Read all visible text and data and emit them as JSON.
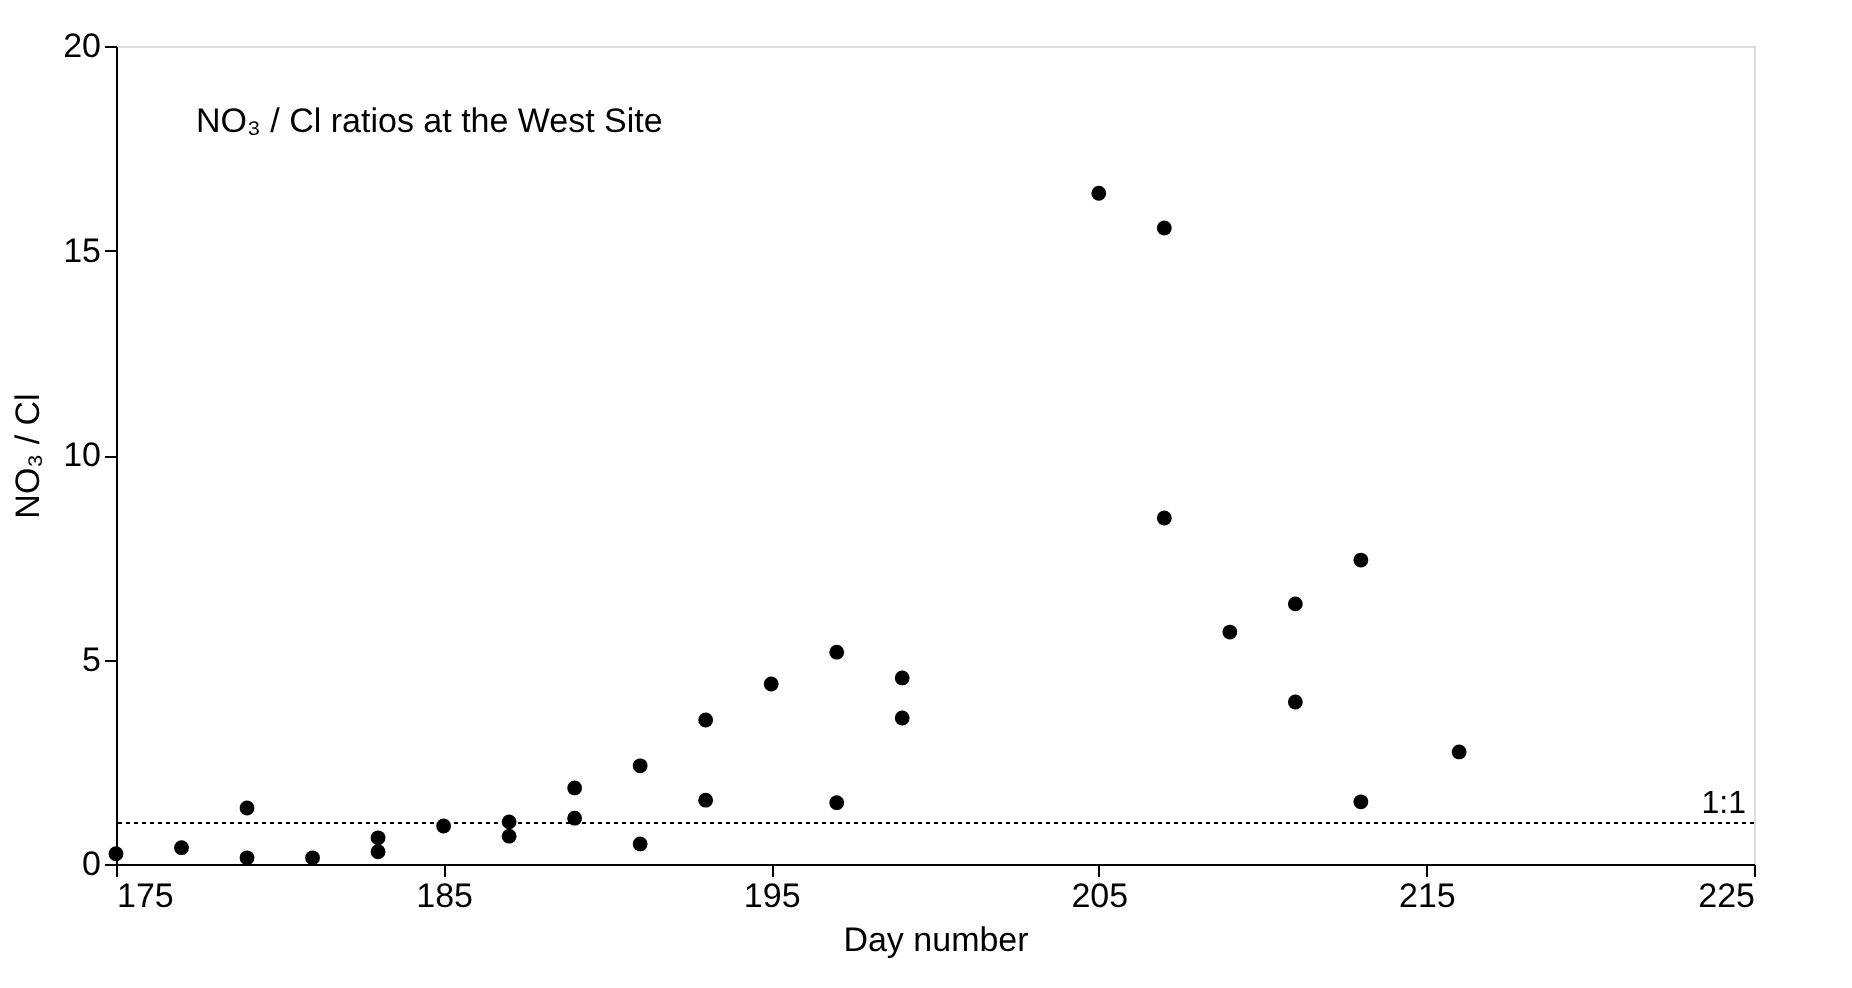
{
  "chart_data": {
    "type": "scatter",
    "title": "NO₃ / Cl ratios at the West Site",
    "xlabel": "Day number",
    "ylabel": "NO₃ / Cl",
    "x": [
      175,
      177,
      179,
      179,
      181,
      183,
      183,
      185,
      187,
      187,
      189,
      189,
      191,
      191,
      193,
      193,
      195,
      197,
      197,
      199,
      199,
      205,
      207,
      207,
      209,
      211,
      211,
      213,
      213,
      216
    ],
    "series": [
      {
        "color": "#000000",
        "values": [
          0.25,
          0.4,
          1.37,
          0.15,
          0.15,
          0.64,
          0.3,
          0.93,
          1.03,
          0.68,
          1.86,
          1.12,
          2.4,
          0.49,
          3.52,
          1.56,
          4.4,
          5.18,
          1.5,
          4.55,
          3.57,
          16.4,
          15.55,
          8.46,
          5.67,
          6.36,
          3.96,
          7.43,
          1.52,
          2.74
        ]
      }
    ],
    "xlim": [
      175,
      225
    ],
    "xticks": [
      175,
      185,
      195,
      205,
      215,
      225
    ],
    "ylim": [
      0,
      20
    ],
    "yticks": [
      0,
      5,
      10,
      15,
      20
    ],
    "ref_lines": [
      {
        "axis": "y",
        "value": 1,
        "label": "1:1",
        "line_style": "dotted",
        "color": "#000000"
      }
    ],
    "marker": "circle",
    "grid": false,
    "legend": false
  }
}
